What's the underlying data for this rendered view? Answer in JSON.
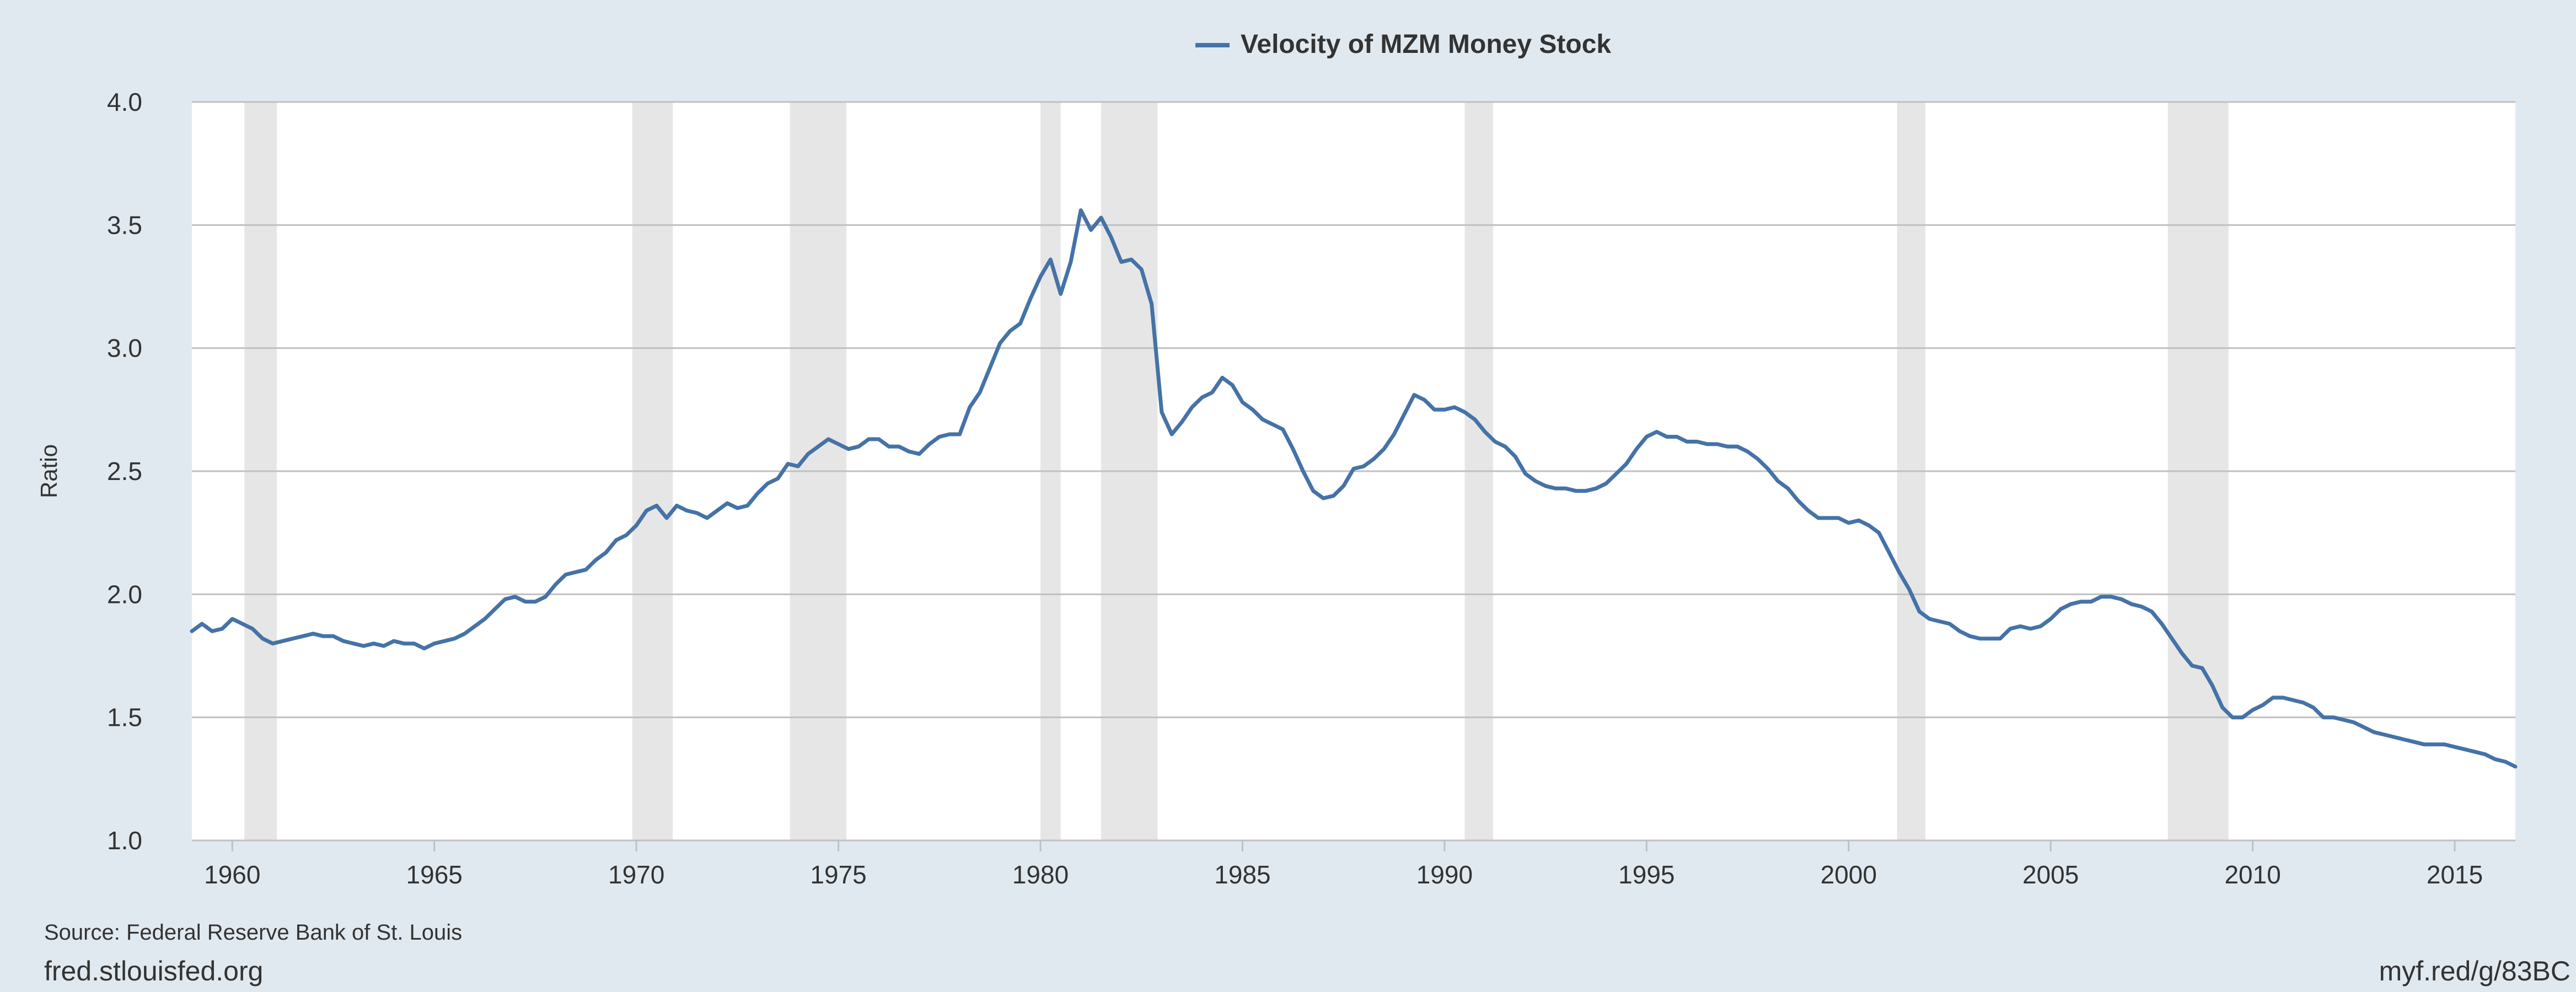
{
  "chart_data": {
    "type": "line",
    "title": "",
    "xlabel": "",
    "ylabel": "Ratio",
    "xlim": [
      1959.0,
      2016.5
    ],
    "ylim": [
      1.0,
      4.0
    ],
    "x_ticks": [
      1960,
      1965,
      1970,
      1975,
      1980,
      1985,
      1990,
      1995,
      2000,
      2005,
      2010,
      2015
    ],
    "y_ticks": [
      1.0,
      1.5,
      2.0,
      2.5,
      3.0,
      3.5,
      4.0
    ],
    "y_tick_labels": [
      "1.0",
      "1.5",
      "2.0",
      "2.5",
      "3.0",
      "3.5",
      "4.0"
    ],
    "grid": "horizontal",
    "legend_position": "top-center",
    "colors": {
      "line": "#4572a7",
      "recession": "#e6e6e6",
      "background": "#e1e9f0",
      "plot_background": "#ffffff",
      "grid": "#c0c0c0"
    },
    "recessions": [
      [
        1960.3,
        1961.1
      ],
      [
        1969.9,
        1970.9
      ],
      [
        1973.8,
        1975.2
      ],
      [
        1980.0,
        1980.5
      ],
      [
        1981.5,
        1982.9
      ],
      [
        1990.5,
        1991.2
      ],
      [
        2001.2,
        2001.9
      ],
      [
        2007.9,
        2009.4
      ]
    ],
    "series": [
      {
        "name": "Velocity of MZM Money Stock",
        "x": [
          1959.0,
          1959.25,
          1959.5,
          1959.75,
          1960.0,
          1960.25,
          1960.5,
          1960.75,
          1961.0,
          1961.25,
          1961.5,
          1961.75,
          1962.0,
          1962.25,
          1962.5,
          1962.75,
          1963.0,
          1963.25,
          1963.5,
          1963.75,
          1964.0,
          1964.25,
          1964.5,
          1964.75,
          1965.0,
          1965.25,
          1965.5,
          1965.75,
          1966.0,
          1966.25,
          1966.5,
          1966.75,
          1967.0,
          1967.25,
          1967.5,
          1967.75,
          1968.0,
          1968.25,
          1968.5,
          1968.75,
          1969.0,
          1969.25,
          1969.5,
          1969.75,
          1970.0,
          1970.25,
          1970.5,
          1970.75,
          1971.0,
          1971.25,
          1971.5,
          1971.75,
          1972.0,
          1972.25,
          1972.5,
          1972.75,
          1973.0,
          1973.25,
          1973.5,
          1973.75,
          1974.0,
          1974.25,
          1974.5,
          1974.75,
          1975.0,
          1975.25,
          1975.5,
          1975.75,
          1976.0,
          1976.25,
          1976.5,
          1976.75,
          1977.0,
          1977.25,
          1977.5,
          1977.75,
          1978.0,
          1978.25,
          1978.5,
          1978.75,
          1979.0,
          1979.25,
          1979.5,
          1979.75,
          1980.0,
          1980.25,
          1980.5,
          1980.75,
          1981.0,
          1981.25,
          1981.5,
          1981.75,
          1982.0,
          1982.25,
          1982.5,
          1982.75,
          1983.0,
          1983.25,
          1983.5,
          1983.75,
          1984.0,
          1984.25,
          1984.5,
          1984.75,
          1985.0,
          1985.25,
          1985.5,
          1985.75,
          1986.0,
          1986.25,
          1986.5,
          1986.75,
          1987.0,
          1987.25,
          1987.5,
          1987.75,
          1988.0,
          1988.25,
          1988.5,
          1988.75,
          1989.0,
          1989.25,
          1989.5,
          1989.75,
          1990.0,
          1990.25,
          1990.5,
          1990.75,
          1991.0,
          1991.25,
          1991.5,
          1991.75,
          1992.0,
          1992.25,
          1992.5,
          1992.75,
          1993.0,
          1993.25,
          1993.5,
          1993.75,
          1994.0,
          1994.25,
          1994.5,
          1994.75,
          1995.0,
          1995.25,
          1995.5,
          1995.75,
          1996.0,
          1996.25,
          1996.5,
          1996.75,
          1997.0,
          1997.25,
          1997.5,
          1997.75,
          1998.0,
          1998.25,
          1998.5,
          1998.75,
          1999.0,
          1999.25,
          1999.5,
          1999.75,
          2000.0,
          2000.25,
          2000.5,
          2000.75,
          2001.0,
          2001.25,
          2001.5,
          2001.75,
          2002.0,
          2002.25,
          2002.5,
          2002.75,
          2003.0,
          2003.25,
          2003.5,
          2003.75,
          2004.0,
          2004.25,
          2004.5,
          2004.75,
          2005.0,
          2005.25,
          2005.5,
          2005.75,
          2006.0,
          2006.25,
          2006.5,
          2006.75,
          2007.0,
          2007.25,
          2007.5,
          2007.75,
          2008.0,
          2008.25,
          2008.5,
          2008.75,
          2009.0,
          2009.25,
          2009.5,
          2009.75,
          2010.0,
          2010.25,
          2010.5,
          2010.75,
          2011.0,
          2011.25,
          2011.5,
          2011.75,
          2012.0,
          2012.25,
          2012.5,
          2012.75,
          2013.0,
          2013.25,
          2013.5,
          2013.75,
          2014.0,
          2014.25,
          2014.5,
          2014.75,
          2015.0,
          2015.25,
          2015.5,
          2015.75,
          2016.0,
          2016.25,
          2016.5
        ],
        "y": [
          1.85,
          1.88,
          1.85,
          1.86,
          1.9,
          1.88,
          1.86,
          1.82,
          1.8,
          1.81,
          1.82,
          1.83,
          1.84,
          1.83,
          1.83,
          1.81,
          1.8,
          1.79,
          1.8,
          1.79,
          1.81,
          1.8,
          1.8,
          1.78,
          1.8,
          1.81,
          1.82,
          1.84,
          1.87,
          1.9,
          1.94,
          1.98,
          1.99,
          1.97,
          1.97,
          1.99,
          2.04,
          2.08,
          2.09,
          2.1,
          2.14,
          2.17,
          2.22,
          2.24,
          2.28,
          2.34,
          2.36,
          2.31,
          2.36,
          2.34,
          2.33,
          2.31,
          2.34,
          2.37,
          2.35,
          2.36,
          2.41,
          2.45,
          2.47,
          2.53,
          2.52,
          2.57,
          2.6,
          2.63,
          2.61,
          2.59,
          2.6,
          2.63,
          2.63,
          2.6,
          2.6,
          2.58,
          2.57,
          2.61,
          2.64,
          2.65,
          2.65,
          2.76,
          2.82,
          2.92,
          3.02,
          3.07,
          3.1,
          3.2,
          3.29,
          3.36,
          3.22,
          3.35,
          3.56,
          3.48,
          3.53,
          3.45,
          3.35,
          3.36,
          3.32,
          3.18,
          2.74,
          2.65,
          2.7,
          2.76,
          2.8,
          2.82,
          2.88,
          2.85,
          2.78,
          2.75,
          2.71,
          2.69,
          2.67,
          2.59,
          2.5,
          2.42,
          2.39,
          2.4,
          2.44,
          2.51,
          2.52,
          2.55,
          2.59,
          2.65,
          2.73,
          2.81,
          2.79,
          2.75,
          2.75,
          2.76,
          2.74,
          2.71,
          2.66,
          2.62,
          2.6,
          2.56,
          2.49,
          2.46,
          2.44,
          2.43,
          2.43,
          2.42,
          2.42,
          2.43,
          2.45,
          2.49,
          2.53,
          2.59,
          2.64,
          2.66,
          2.64,
          2.64,
          2.62,
          2.62,
          2.61,
          2.61,
          2.6,
          2.6,
          2.58,
          2.55,
          2.51,
          2.46,
          2.43,
          2.38,
          2.34,
          2.31,
          2.31,
          2.31,
          2.29,
          2.3,
          2.28,
          2.25,
          2.17,
          2.09,
          2.02,
          1.93,
          1.9,
          1.89,
          1.88,
          1.85,
          1.83,
          1.82,
          1.82,
          1.82,
          1.86,
          1.87,
          1.86,
          1.87,
          1.9,
          1.94,
          1.96,
          1.97,
          1.97,
          1.99,
          1.99,
          1.98,
          1.96,
          1.95,
          1.93,
          1.88,
          1.82,
          1.76,
          1.71,
          1.7,
          1.63,
          1.54,
          1.5,
          1.5,
          1.53,
          1.55,
          1.58,
          1.58,
          1.57,
          1.56,
          1.54,
          1.5,
          1.5,
          1.49,
          1.48,
          1.46,
          1.44,
          1.43,
          1.42,
          1.41,
          1.4,
          1.39,
          1.39,
          1.39,
          1.38,
          1.37,
          1.36,
          1.35,
          1.33,
          1.32,
          1.3
        ]
      }
    ]
  },
  "legend": {
    "label": "Velocity of MZM Money Stock"
  },
  "footer": {
    "source": "Source: Federal Reserve Bank of St. Louis",
    "site": "fred.stlouisfed.org",
    "shortlink": "myf.red/g/83BC"
  }
}
